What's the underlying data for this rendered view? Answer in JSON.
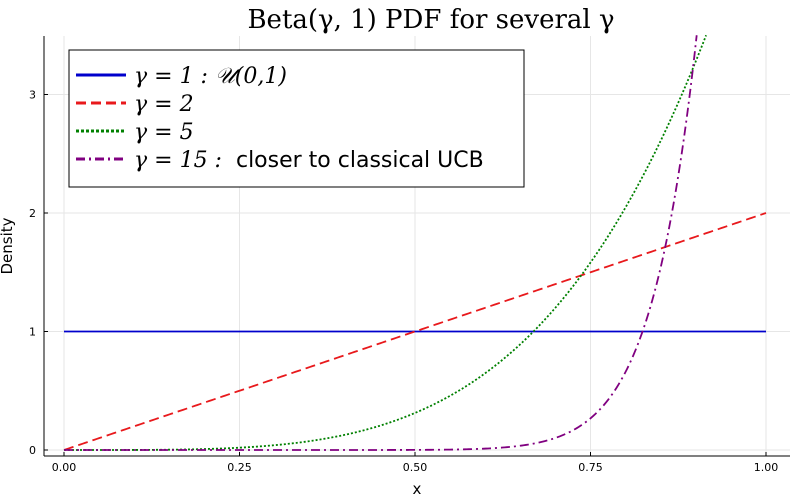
{
  "chart_data": {
    "type": "line",
    "title": "Beta(γ, 1) PDF for several γ",
    "xlabel": "x",
    "ylabel": "Density",
    "xlim": [
      0,
      1
    ],
    "ylim": [
      0,
      3.5
    ],
    "x_ticks": [
      "0.00",
      "0.25",
      "0.50",
      "0.75",
      "1.00"
    ],
    "y_ticks": [
      "0",
      "1",
      "2",
      "3"
    ],
    "grid": true,
    "legend_position": "top-left",
    "series": [
      {
        "name": "γ = 1 : 𝒰(0,1)",
        "gamma": 1,
        "color": "#0000cc",
        "style": "solid",
        "x": [
          0,
          0.25,
          0.5,
          0.75,
          1.0
        ],
        "y": [
          1,
          1,
          1,
          1,
          1
        ]
      },
      {
        "name": "γ = 2",
        "gamma": 2,
        "color": "#e8191c",
        "style": "dashed",
        "x": [
          0,
          0.25,
          0.5,
          0.75,
          1.0
        ],
        "y": [
          0,
          0.5,
          1.0,
          1.5,
          2.0
        ]
      },
      {
        "name": "γ = 5",
        "gamma": 5,
        "color": "#008000",
        "style": "dotted",
        "x": [
          0,
          0.25,
          0.5,
          0.667,
          0.75,
          0.85,
          0.91
        ],
        "y": [
          0,
          0.02,
          0.31,
          0.99,
          1.58,
          2.61,
          3.43
        ]
      },
      {
        "name": "γ = 15 :  closer to classical UCB",
        "gamma": 15,
        "color": "#800080",
        "style": "dashdot",
        "x": [
          0,
          0.5,
          0.7,
          0.8,
          0.825,
          0.85,
          0.875,
          0.9
        ],
        "y": [
          0,
          0.001,
          0.1,
          0.66,
          1.0,
          1.54,
          2.35,
          3.45
        ]
      }
    ]
  },
  "legend": {
    "items": [
      {
        "prefix": "γ = 1 : 𝒰(0,1)",
        "suffix": ""
      },
      {
        "prefix": "γ = 2",
        "suffix": ""
      },
      {
        "prefix": "γ = 5",
        "suffix": ""
      },
      {
        "prefix": "γ = 15 :",
        "suffix": "closer to classical UCB"
      }
    ]
  }
}
